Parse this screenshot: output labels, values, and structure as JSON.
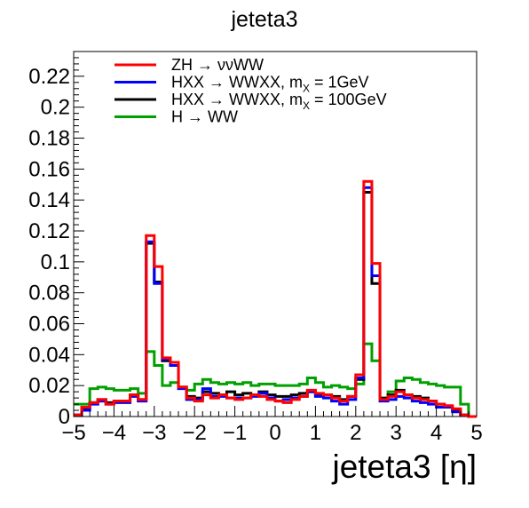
{
  "chart_data": {
    "type": "histogram-step",
    "title": "jeteta3",
    "xlabel": "jeteta3 [η]",
    "ylabel": "",
    "xlim": [
      -5,
      5
    ],
    "ylim": [
      0,
      0.236
    ],
    "x_ticks": [
      -5,
      -4,
      -3,
      -2,
      -1,
      0,
      1,
      2,
      3,
      4,
      5
    ],
    "x_tick_labels": [
      "−5",
      "−4",
      "−3",
      "−2",
      "−1",
      "0",
      "1",
      "2",
      "3",
      "4",
      "5"
    ],
    "y_ticks": [
      0,
      0.02,
      0.04,
      0.06,
      0.08,
      0.1,
      0.12,
      0.14,
      0.16,
      0.18,
      0.2,
      0.22
    ],
    "y_tick_labels": [
      "0",
      "0.02",
      "0.04",
      "0.06",
      "0.08",
      "0.1",
      "0.12",
      "0.14",
      "0.16",
      "0.18",
      "0.2",
      "0.22"
    ],
    "bin_edges_start": -5,
    "bin_width": 0.2,
    "legend_position": "top-left",
    "series": [
      {
        "name": "ZH → ννWW",
        "legend_main": "ZH → ννWW",
        "legend_sub": "",
        "legend_tail": "",
        "color": "#ff0000",
        "values": [
          0.001,
          0.006,
          0.009,
          0.011,
          0.008,
          0.01,
          0.01,
          0.014,
          0.011,
          0.117,
          0.097,
          0.038,
          0.035,
          0.019,
          0.012,
          0.01,
          0.014,
          0.012,
          0.014,
          0.012,
          0.011,
          0.012,
          0.014,
          0.013,
          0.011,
          0.01,
          0.009,
          0.011,
          0.013,
          0.017,
          0.015,
          0.014,
          0.012,
          0.01,
          0.013,
          0.027,
          0.152,
          0.099,
          0.011,
          0.013,
          0.016,
          0.014,
          0.012,
          0.011,
          0.01,
          0.008,
          0.007,
          0.005,
          0.001,
          0.0
        ]
      },
      {
        "name": "HXX → WWXX, mX = 1GeV",
        "legend_main": "HXX → WWXX, m",
        "legend_sub": "X",
        "legend_tail": " = 1GeV",
        "color": "#0000ff",
        "values": [
          0.001,
          0.004,
          0.008,
          0.01,
          0.008,
          0.009,
          0.009,
          0.013,
          0.01,
          0.113,
          0.086,
          0.037,
          0.033,
          0.018,
          0.011,
          0.011,
          0.018,
          0.013,
          0.013,
          0.012,
          0.012,
          0.012,
          0.013,
          0.015,
          0.012,
          0.01,
          0.011,
          0.012,
          0.013,
          0.016,
          0.013,
          0.012,
          0.01,
          0.008,
          0.011,
          0.025,
          0.148,
          0.091,
          0.01,
          0.011,
          0.013,
          0.012,
          0.01,
          0.009,
          0.008,
          0.006,
          0.006,
          0.003,
          0.001,
          0.0
        ]
      },
      {
        "name": "HXX → WWXX, mX = 100GeV",
        "legend_main": "HXX → WWXX, m",
        "legend_sub": "X",
        "legend_tail": " = 100GeV",
        "color": "#000000",
        "values": [
          0.001,
          0.005,
          0.009,
          0.011,
          0.009,
          0.01,
          0.01,
          0.014,
          0.011,
          0.112,
          0.087,
          0.036,
          0.033,
          0.019,
          0.013,
          0.012,
          0.016,
          0.015,
          0.014,
          0.016,
          0.014,
          0.015,
          0.014,
          0.016,
          0.014,
          0.013,
          0.013,
          0.014,
          0.015,
          0.016,
          0.014,
          0.014,
          0.013,
          0.011,
          0.013,
          0.024,
          0.145,
          0.086,
          0.012,
          0.014,
          0.017,
          0.014,
          0.013,
          0.012,
          0.01,
          0.008,
          0.006,
          0.004,
          0.001,
          0.0
        ]
      },
      {
        "name": "H → WW",
        "legend_main": "H → WW",
        "legend_sub": "",
        "legend_tail": "",
        "color": "#00a000",
        "values": [
          0.008,
          0.008,
          0.018,
          0.019,
          0.018,
          0.017,
          0.017,
          0.018,
          0.015,
          0.042,
          0.033,
          0.02,
          0.022,
          0.019,
          0.017,
          0.021,
          0.024,
          0.022,
          0.021,
          0.022,
          0.021,
          0.022,
          0.02,
          0.021,
          0.021,
          0.02,
          0.02,
          0.02,
          0.021,
          0.025,
          0.022,
          0.019,
          0.02,
          0.019,
          0.018,
          0.021,
          0.047,
          0.036,
          0.011,
          0.016,
          0.023,
          0.025,
          0.024,
          0.022,
          0.021,
          0.02,
          0.019,
          0.019,
          0.008,
          0.0
        ]
      }
    ]
  }
}
